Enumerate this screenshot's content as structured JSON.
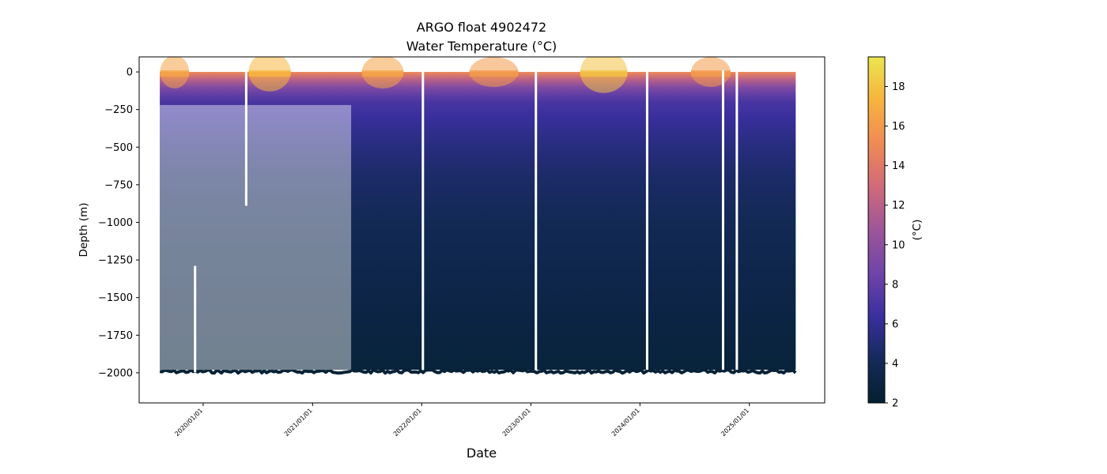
{
  "chart_data": {
    "type": "scatter",
    "title": "ARGO float 4902472",
    "subtitle": "Water Temperature (°C)",
    "xlabel": "Date",
    "ylabel": "Depth (m)",
    "colorbar_label": "(°C)",
    "colormap": "thermal",
    "colormap_stops": [
      "#04202f",
      "#142a5a",
      "#3a2f9e",
      "#6f44a8",
      "#9c5699",
      "#d06a7a",
      "#f08a55",
      "#f7b33e",
      "#eae64f"
    ],
    "ylim": [
      -2200,
      100
    ],
    "yticks": [
      0,
      -250,
      -500,
      -750,
      -1000,
      -1250,
      -1500,
      -1750,
      -2000
    ],
    "ytick_labels": [
      "0",
      "−250",
      "−500",
      "−750",
      "−1000",
      "−1250",
      "−1500",
      "−1750",
      "−2000"
    ],
    "xlim": [
      "2019-06-01",
      "2025-09-10"
    ],
    "xticks": [
      "2020-01-01",
      "2021-01-01",
      "2022-01-01",
      "2023-01-01",
      "2024-01-01",
      "2025-01-01"
    ],
    "xtick_labels": [
      "2020/01/01",
      "2021/01/01",
      "2022/01/01",
      "2023/01/01",
      "2024/01/01",
      "2025/01/01"
    ],
    "clim": [
      2,
      19.5
    ],
    "cticks": [
      2,
      4,
      6,
      8,
      10,
      12,
      14,
      16,
      18
    ],
    "ctick_labels": [
      "2",
      "4",
      "6",
      "8",
      "10",
      "12",
      "14",
      "16",
      "18"
    ],
    "profile_period": [
      "2019-08-09",
      "2025-06-05"
    ],
    "max_depth": -1980,
    "gaps": [
      {
        "date": "2020-05-24",
        "depth_range": [
          0,
          -890
        ]
      },
      {
        "date": "2022-01-05",
        "depth_range": [
          0,
          -1980
        ]
      },
      {
        "date": "2023-01-18",
        "depth_range": [
          0,
          -1980
        ]
      },
      {
        "date": "2024-01-25",
        "depth_range": [
          0,
          -1980
        ]
      },
      {
        "date": "2024-10-05",
        "depth_range": [
          0,
          -1980
        ]
      },
      {
        "date": "2024-11-20",
        "depth_range": [
          0,
          -1980
        ]
      },
      {
        "date": "2019-12-05",
        "depth_range": [
          -1300,
          -1995
        ]
      }
    ],
    "temperature_profile": {
      "depth": [
        0,
        -50,
        -100,
        -150,
        -200,
        -300,
        -400,
        -500,
        -700,
        -1000,
        -1500,
        -2000
      ],
      "temperature": [
        15,
        12,
        9.5,
        8,
        7,
        6.3,
        5.8,
        5.3,
        4.6,
        3.9,
        3.2,
        2.6
      ]
    },
    "warm_surface_periods": [
      {
        "start": "2019-08-10",
        "end": "2019-11-15",
        "peak_temperature": 16.5
      },
      {
        "start": "2020-06-01",
        "end": "2020-10-20",
        "peak_temperature": 17.5
      },
      {
        "start": "2021-06-15",
        "end": "2021-11-01",
        "peak_temperature": 16.5
      },
      {
        "start": "2022-06-10",
        "end": "2022-11-20",
        "peak_temperature": 16
      },
      {
        "start": "2023-06-15",
        "end": "2023-11-20",
        "peak_temperature": 18
      },
      {
        "start": "2024-06-20",
        "end": "2024-10-30",
        "peak_temperature": 16
      }
    ],
    "sparse_sampling_period": {
      "start": "2019-08-09",
      "end": "2021-05-10",
      "depth_range": [
        -220,
        -1980
      ]
    },
    "grid": false
  }
}
